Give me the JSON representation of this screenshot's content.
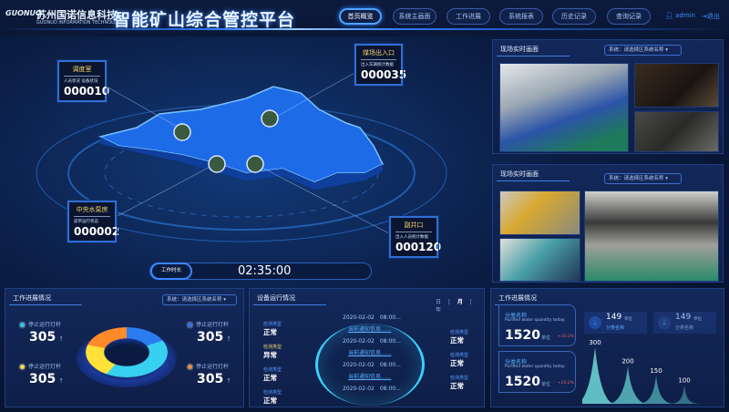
{
  "header": {
    "logo_text": "GUONUO",
    "company": "苏州国诺信息科技",
    "company_en": "GUONUO INFORMATION TECHNOLOGY",
    "title": "智能矿山综合管控平台",
    "nav": [
      "首页概览",
      "系统主画面",
      "工作进展",
      "系统报表",
      "历史记录",
      "查询记录"
    ],
    "active_nav": "首页概览",
    "user": "admin",
    "logout": "退出"
  },
  "map": {
    "callouts": [
      {
        "title": "调度室",
        "subtitle": "人员状况 设备状况",
        "value": "000010"
      },
      {
        "title": "煤场出入口",
        "subtitle": "出入车辆统计数据",
        "value": "000035"
      },
      {
        "title": "中央水泵房",
        "subtitle": "皮带运行状态",
        "value": "000002"
      },
      {
        "title": "副井口",
        "subtitle": "出入人员统计数据",
        "value": "000120"
      }
    ],
    "timer_label": "工作时长",
    "timer_value": "02:35:00"
  },
  "camera_panels": [
    {
      "title": "现场实时画面",
      "select": "系统：请选择区系统名称 ▾"
    },
    {
      "title": "现场实时画面",
      "select": "系统：请选择区系统名称 ▾"
    }
  ],
  "progress_panel": {
    "title": "工作进展情况",
    "select": "系统：请选择区系统名称 ▾",
    "stats": [
      {
        "label": "停止运行灯杆",
        "value": "305",
        "color": "#29c6f0"
      },
      {
        "label": "停止运行灯杆",
        "value": "305",
        "color": "#3a6fe8"
      },
      {
        "label": "停止运行灯杆",
        "value": "305",
        "color": "#f1e04a"
      },
      {
        "label": "停止运行灯杆",
        "value": "305",
        "color": "#f08a4b"
      }
    ],
    "arrow": "↑",
    "ring_colors": [
      "#2a7cf0",
      "#38d0f0",
      "#ffe13a",
      "#ff8a2a"
    ]
  },
  "device_panel": {
    "title": "设备运行情况",
    "periods": [
      "日",
      "月",
      "年"
    ],
    "active_period": "月",
    "left": [
      {
        "k": "检测类型",
        "v": "正常"
      },
      {
        "k": "检测类型",
        "v": "异常"
      },
      {
        "k": "检测类型",
        "v": "正常"
      },
      {
        "k": "检测类型",
        "v": "正常"
      }
    ],
    "right": [
      {
        "k": "检测类型",
        "v": "正常"
      },
      {
        "k": "检测类型",
        "v": "正常"
      },
      {
        "k": "检测类型",
        "v": "正常"
      }
    ],
    "timeline": [
      "2020-02-02　08:00...",
      "当前通知信息......",
      "2020-02-02　08:00...",
      "当前通知信息......",
      "2020-02-02　08:00...",
      "当前通知信息......",
      "2020-02-02　08:00..."
    ]
  },
  "water_panel": {
    "title": "工作进展情况",
    "cards": [
      {
        "name": "分类名称",
        "en": "Purified water quantity today",
        "value": "1520",
        "unit": "单位",
        "change": "+20.2%"
      },
      {
        "name": "分类名称",
        "en": "Purified water quantity today",
        "value": "1520",
        "unit": "单位",
        "change": "+20.2%"
      }
    ],
    "minis": [
      {
        "value": "149",
        "unit": "单位",
        "name": "分类名称"
      },
      {
        "value": "149",
        "unit": "单位",
        "name": "分类名称"
      }
    ]
  },
  "chart_data": {
    "type": "area",
    "categories": [
      "",
      "",
      "",
      ""
    ],
    "values": [
      300,
      200,
      150,
      100
    ],
    "data_labels": [
      "300",
      "200",
      "150",
      "100"
    ]
  }
}
